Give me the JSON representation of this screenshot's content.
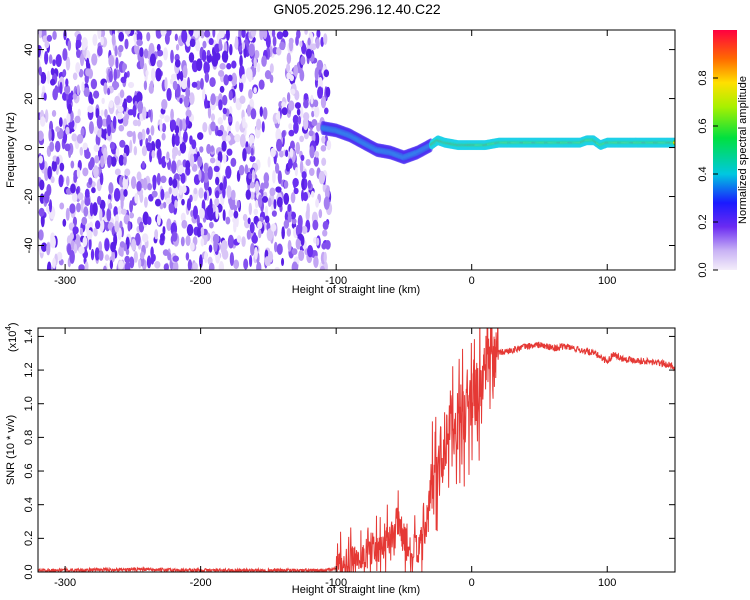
{
  "title": "GN05.2025.296.12.40.C22",
  "chart_data": [
    {
      "type": "heatmap",
      "name": "spectrogram",
      "xlabel": "Height of straight line (km)",
      "ylabel": "Frequency (Hz)",
      "xlim": [
        -320,
        150
      ],
      "ylim": [
        -50,
        48
      ],
      "xticks": [
        -300,
        -200,
        -100,
        0,
        100
      ],
      "yticks": [
        -40,
        -20,
        0,
        20,
        40
      ],
      "noise_region_x": [
        -320,
        -105
      ],
      "ridge": {
        "x": [
          -110,
          -100,
          -90,
          -80,
          -70,
          -60,
          -55,
          -50,
          -40,
          -30,
          -25,
          -20,
          -10,
          0,
          10,
          20,
          40,
          60,
          80,
          85,
          90,
          95,
          100,
          150
        ],
        "y": [
          8,
          7,
          5,
          2,
          -1,
          -2,
          -3,
          -4,
          -2,
          1,
          3,
          2,
          1,
          1,
          1,
          2,
          2,
          2,
          2,
          3,
          3,
          1,
          2,
          2
        ]
      },
      "colorbar": {
        "label": "Normalized spectral amplitude",
        "ticks": [
          0.0,
          0.2,
          0.4,
          0.6,
          0.8
        ],
        "range": [
          0,
          1
        ]
      }
    },
    {
      "type": "line",
      "name": "snr",
      "xlabel": "Height of straight line (km)",
      "ylabel": "SNR (10 * v/v)",
      "scale_label": "(x10",
      "scale_exp": "4",
      "scale_close": ")",
      "xlim": [
        -320,
        150
      ],
      "ylim": [
        0,
        1.45
      ],
      "xticks": [
        -300,
        -200,
        -100,
        0,
        100
      ],
      "yticks": [
        0.0,
        0.2,
        0.4,
        0.6,
        0.8,
        1.0,
        1.2,
        1.4
      ],
      "series": [
        {
          "name": "SNR",
          "color": "#e53935",
          "x": [
            -320,
            -250,
            -200,
            -150,
            -110,
            -100,
            -90,
            -80,
            -70,
            -60,
            -55,
            -50,
            -45,
            -40,
            -35,
            -30,
            -25,
            -20,
            -15,
            -10,
            -5,
            0,
            5,
            10,
            15,
            20,
            30,
            40,
            50,
            60,
            70,
            80,
            90,
            95,
            100,
            105,
            110,
            120,
            130,
            140,
            150
          ],
          "y": [
            0.01,
            0.015,
            0.01,
            0.01,
            0.01,
            0.02,
            0.05,
            0.1,
            0.15,
            0.2,
            0.3,
            0.2,
            0.1,
            0.15,
            0.2,
            0.5,
            0.6,
            0.8,
            0.85,
            0.9,
            0.95,
            1.0,
            1.1,
            1.2,
            1.25,
            1.3,
            1.32,
            1.34,
            1.35,
            1.33,
            1.34,
            1.32,
            1.3,
            1.28,
            1.25,
            1.3,
            1.27,
            1.26,
            1.25,
            1.24,
            1.22
          ]
        }
      ]
    }
  ]
}
